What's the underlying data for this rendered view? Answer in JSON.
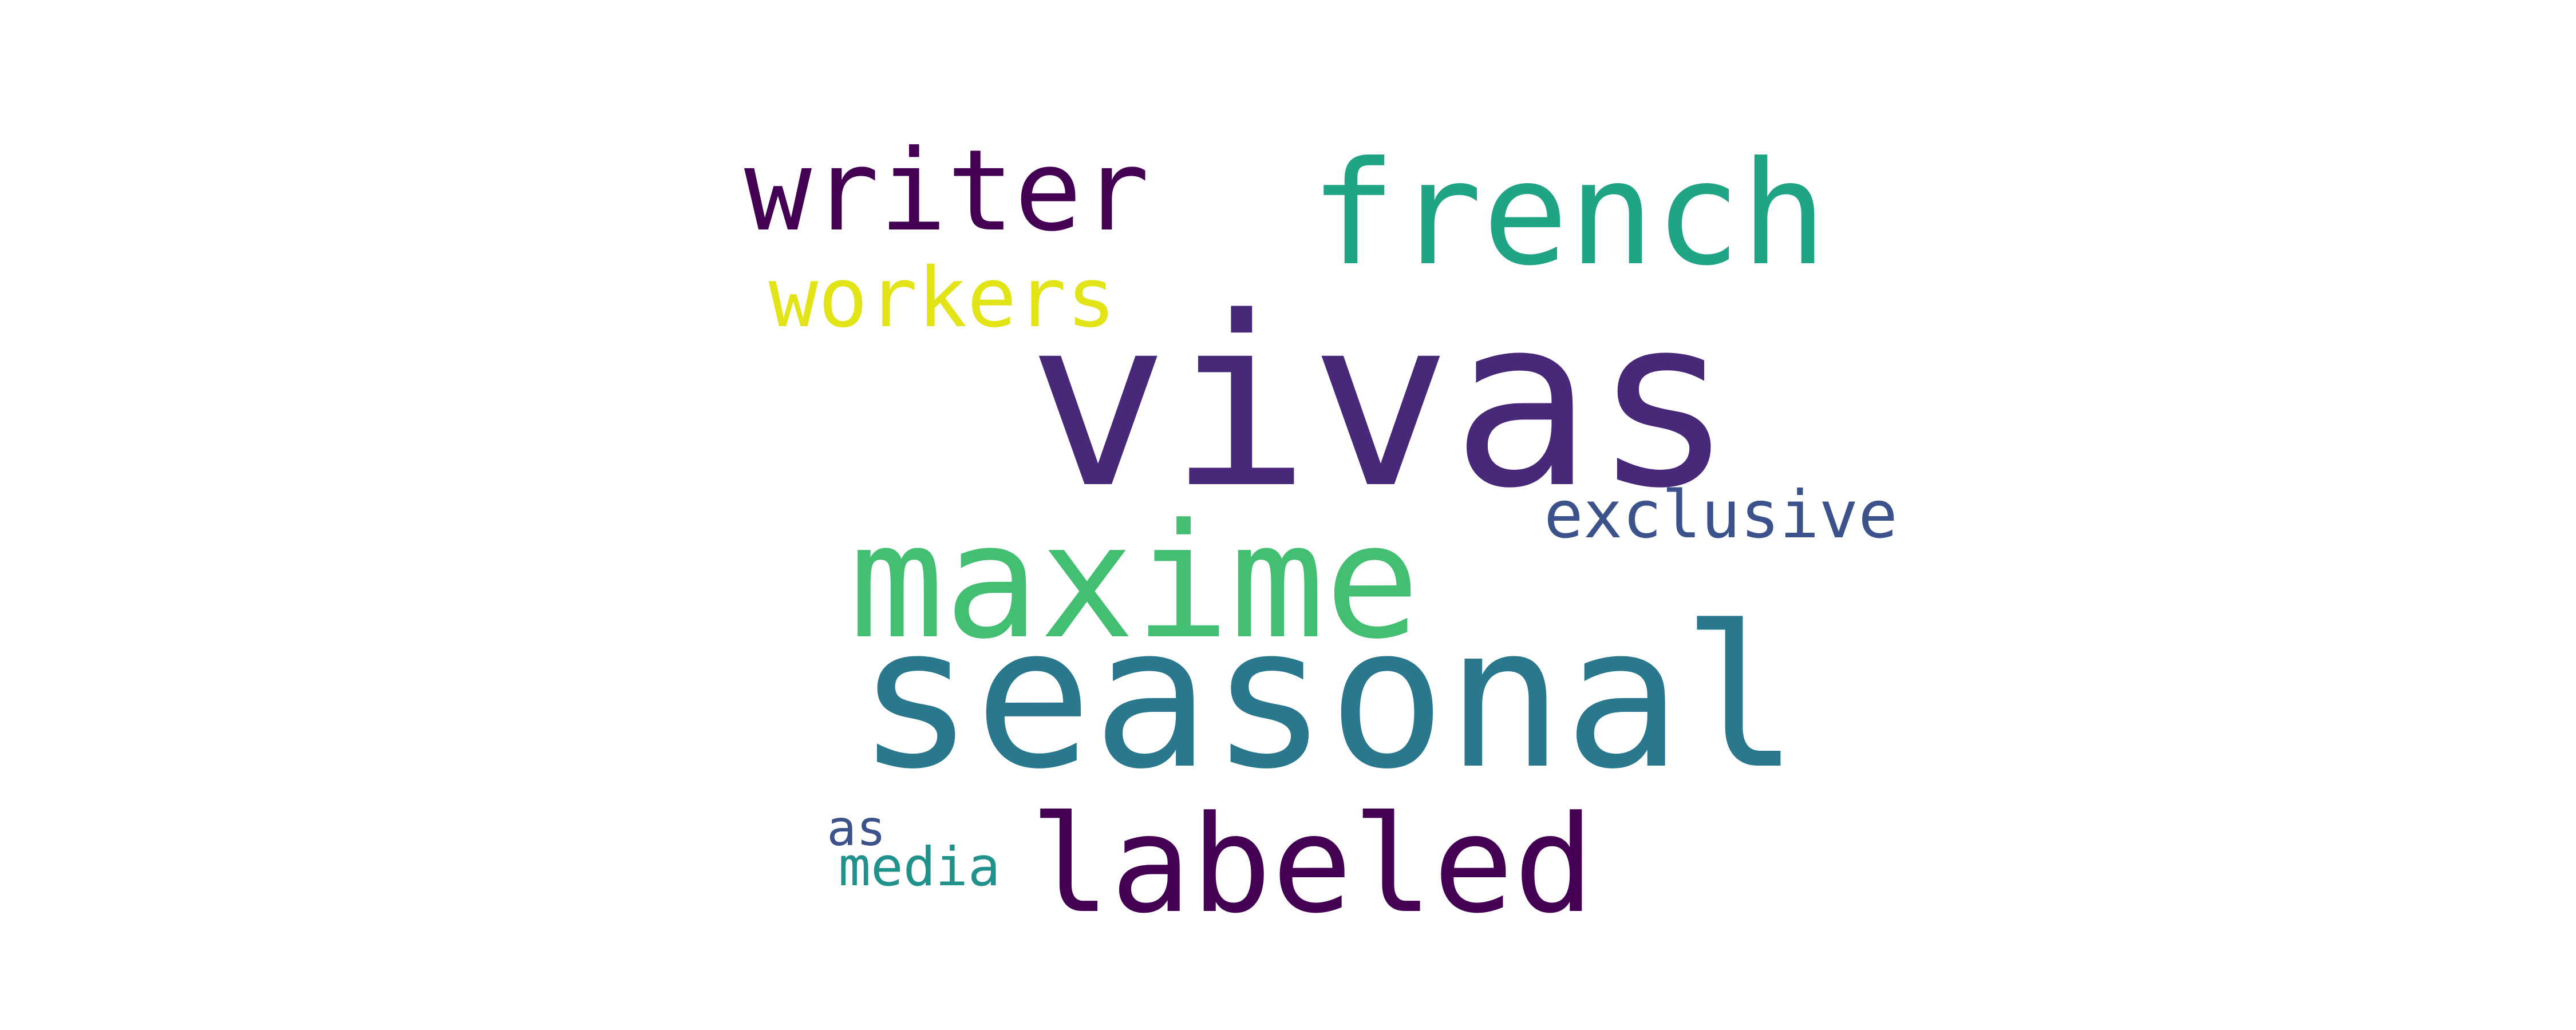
{
  "words": [
    {
      "id": "vivas",
      "text": "vivas",
      "color": "#482878"
    },
    {
      "id": "seasonal",
      "text": "seasonal",
      "color": "#2a788e"
    },
    {
      "id": "maxime",
      "text": "maxime",
      "color": "#43bf71"
    },
    {
      "id": "french",
      "text": "french",
      "color": "#20a486"
    },
    {
      "id": "labeled",
      "text": "labeled",
      "color": "#440154"
    },
    {
      "id": "writer",
      "text": "writer",
      "color": "#440154"
    },
    {
      "id": "workers",
      "text": "workers",
      "color": "#e3e418"
    },
    {
      "id": "exclusive",
      "text": "exclusive",
      "color": "#3b528b"
    },
    {
      "id": "media",
      "text": "media",
      "color": "#21918c"
    },
    {
      "id": "as",
      "text": "as",
      "color": "#3b528b"
    }
  ]
}
